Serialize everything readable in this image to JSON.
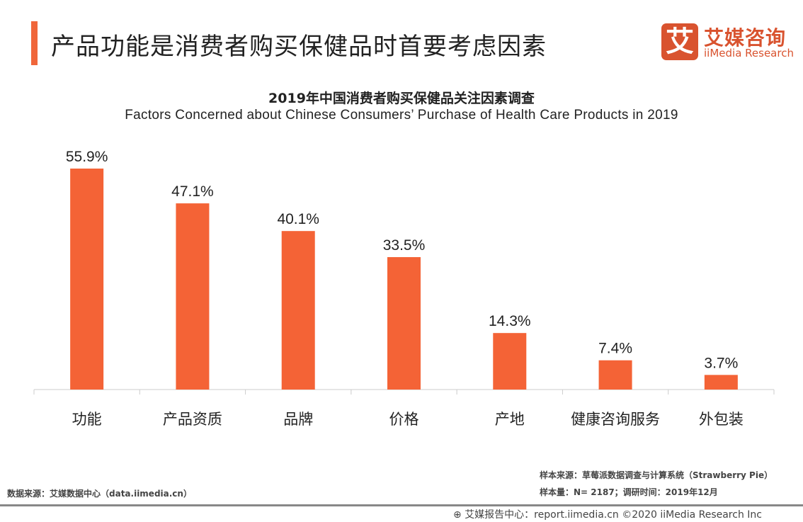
{
  "header": {
    "title": "产品功能是消费者购买保健品时首要考虑因素"
  },
  "logo": {
    "mark": "艾",
    "cn": "艾媒咨询",
    "en": "iiMedia Research"
  },
  "chart_data": {
    "type": "bar",
    "title": "2019年中国消费者购买保健品关注因素调查",
    "subtitle": "Factors Concerned about Chinese Consumers’  Purchase of Health Care Products in 2019",
    "categories": [
      "功能",
      "产品资质",
      "品牌",
      "价格",
      "产地",
      "健康咨询服务",
      "外包装"
    ],
    "values": [
      55.9,
      47.1,
      40.1,
      33.5,
      14.3,
      7.4,
      3.7
    ],
    "labels": [
      "55.9%",
      "47.1%",
      "40.1%",
      "33.5%",
      "14.3%",
      "7.4%",
      "3.7%"
    ],
    "ylim": [
      0,
      60
    ],
    "grid": false,
    "bar_color": "#f46336"
  },
  "footer": {
    "source": "数据来源：艾媒数据中心（data.iimedia.cn）",
    "sample_source": "样本来源：草莓派数据调查与计算系统（Strawberry Pie）",
    "sample_size": "样本量：N= 2187；调研时间：2019年12月",
    "report": "艾媒报告中心：report.iimedia.cn ©2020  iiMedia Research Inc"
  }
}
